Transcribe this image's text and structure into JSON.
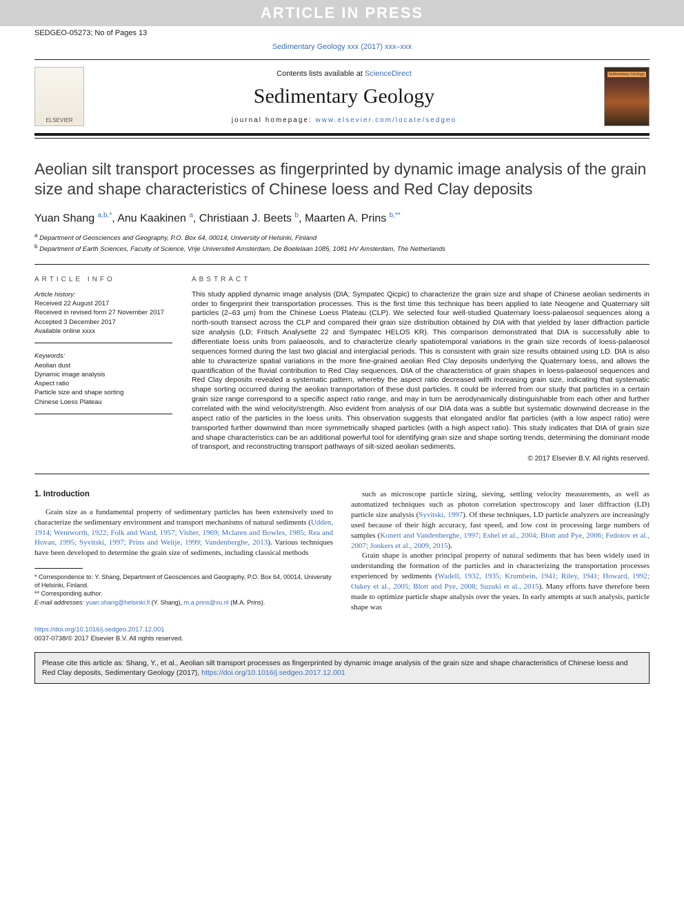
{
  "watermark": "ARTICLE IN PRESS",
  "header": {
    "left": "SEDGEO-05273; No of Pages 13",
    "journal_ref": "Sedimentary Geology xxx (2017) xxx–xxx"
  },
  "masthead": {
    "contents_prefix": "Contents lists available at ",
    "contents_link": "ScienceDirect",
    "journal_title": "Sedimentary Geology",
    "homepage_prefix": "journal homepage: ",
    "homepage_url": "www.elsevier.com/locate/sedgeo",
    "elsevier_label": "ELSEVIER",
    "cover_tag": "Sedimentary Geology"
  },
  "article": {
    "title": "Aeolian silt transport processes as fingerprinted by dynamic image analysis of the grain size and shape characteristics of Chinese loess and Red Clay deposits",
    "authors_html": "Yuan Shang <sup>a,b,*</sup>, Anu Kaakinen <sup>a</sup>, Christiaan J. Beets <sup>b</sup>, Maarten A. Prins <sup>b,**</sup>",
    "affiliations": {
      "a": "Department of Geosciences and Geography, P.O. Box 64, 00014, University of Helsinki, Finland",
      "b": "Department of Earth Sciences, Faculty of Science, Vrije Universiteit Amsterdam, De Boelelaan 1085, 1081 HV Amsterdam, The Netherlands"
    }
  },
  "info": {
    "label": "ARTICLE INFO",
    "history_label": "Article history:",
    "history": [
      "Received 22 August 2017",
      "Received in revised form 27 November 2017",
      "Accepted 3 December 2017",
      "Available online xxxx"
    ],
    "keywords_label": "Keywords:",
    "keywords": [
      "Aeolian dust",
      "Dynamic image analysis",
      "Aspect ratio",
      "Particle size and shape sorting",
      "Chinese Loess Plateau"
    ]
  },
  "abstract": {
    "label": "ABSTRACT",
    "text": "This study applied dynamic image analysis (DIA; Sympatec Qicpic) to characterize the grain size and shape of Chinese aeolian sediments in order to fingerprint their transportation processes. This is the first time this technique has been applied to late Neogene and Quaternary silt particles (2–63 μm) from the Chinese Loess Plateau (CLP). We selected four well-studied Quaternary loess-palaeosol sequences along a north-south transect across the CLP and compared their grain size distribution obtained by DIA with that yielded by laser diffraction particle size analysis (LD; Fritsch Analysette 22 and Sympatec HELOS KR). This comparison demonstrated that DIA is successfully able to differentiate loess units from palaeosols, and to characterize clearly spatiotemporal variations in the grain size records of loess-palaeosol sequences formed during the last two glacial and interglacial periods. This is consistent with grain size results obtained using LD. DIA is also able to characterize spatial variations in the more fine-grained aeolian Red Clay deposits underlying the Quaternary loess, and allows the quantification of the fluvial contribution to Red Clay sequences. DIA of the characteristics of grain shapes in loess-palaeosol sequences and Red Clay deposits revealed a systematic pattern, whereby the aspect ratio decreased with increasing grain size, indicating that systematic shape sorting occurred during the aeolian transportation of these dust particles. It could be inferred from our study that particles in a certain grain size range correspond to a specific aspect ratio range, and may in turn be aerodynamically distinguishable from each other and further correlated with the wind velocity/strength. Also evident from analysis of our DIA data was a subtle but systematic downwind decrease in the aspect ratio of the particles in the loess units. This observation suggests that elongated and/or flat particles (with a low aspect ratio) were transported further downwind than more symmetrically shaped particles (with a high aspect ratio). This study indicates that DIA of grain size and shape characteristics can be an additional powerful tool for identifying grain size and shape sorting trends, determining the dominant mode of transport, and reconstructing transport pathways of silt-sized aeolian sediments.",
    "copyright": "© 2017 Elsevier B.V. All rights reserved."
  },
  "body": {
    "intro_heading": "1. Introduction",
    "p1_pre": "Grain size as a fundamental property of sedimentary particles has been extensively used to characterize the sedimentary environment and transport mechanisms of natural sediments (",
    "p1_link": "Udden, 1914; Wentworth, 1922; Folk and Ward, 1957; Visher, 1969; Mclaren and Bowles, 1985; Rea and Hovan, 1995; Syvitski, 1997; Prins and Weltje, 1999; Vandenberghe, 2013",
    "p1_post": "). Various techniques have been developed to determine the grain size of sediments, including classical methods",
    "p2_pre": "such as microscope particle sizing, sieving, settling velocity measurements, as well as automatized techniques such as photon correlation spectroscopy and laser diffraction (LD) particle size analysis (",
    "p2_link1": "Syvitski, 1997",
    "p2_mid": "). Of these techniques, LD particle analyzers are increasingly used because of their high accuracy, fast speed, and low cost in processing large numbers of samples (",
    "p2_link2": "Konert and Vandenberghe, 1997; Eshel et al., 2004; Blott and Pye, 2006; Fedotov et al., 2007; Jonkers et al., 2009, 2015",
    "p2_post": ").",
    "p3_pre": "Grain shape is another principal property of natural sediments that has been widely used in understanding the formation of the particles and in characterizing the transportation processes experienced by sediments (",
    "p3_link": "Wadell, 1932, 1935; Krumbein, 1941; Riley, 1941; Howard, 1992; Oakey et al., 2005; Blott and Pye, 2008; Suzuki et al., 2015",
    "p3_post": "). Many efforts have therefore been made to optimize particle shape analysis over the years. In early attempts at such analysis, particle shape was"
  },
  "footnotes": {
    "corr1": "* Correspondence to: Y. Shang, Department of Geosciences and Geography, P.O. Box 64, 00014, University of Helsinki, Finland.",
    "corr2": "** Corresponding author.",
    "email_label": "E-mail addresses: ",
    "email1": "yuan.shang@helsinki.fi",
    "email1_who": " (Y. Shang), ",
    "email2": "m.a.prins@vu.nl",
    "email2_who": " (M.A. Prins)."
  },
  "doi": {
    "url": "https://doi.org/10.1016/j.sedgeo.2017.12.001",
    "line2": "0037-0738/© 2017 Elsevier B.V. All rights reserved."
  },
  "citebox": {
    "pre": "Please cite this article as: Shang, Y., et al., Aeolian silt transport processes as fingerprinted by dynamic image analysis of the grain size and shape characteristics of Chinese loess and Red Clay deposits, Sedimentary Geology (2017), ",
    "url": "https://doi.org/10.1016/j.sedgeo.2017.12.001"
  },
  "colors": {
    "link": "#3a6fb7",
    "watermark_bg": "#d0d0d0",
    "citebox_bg": "#ececec"
  }
}
